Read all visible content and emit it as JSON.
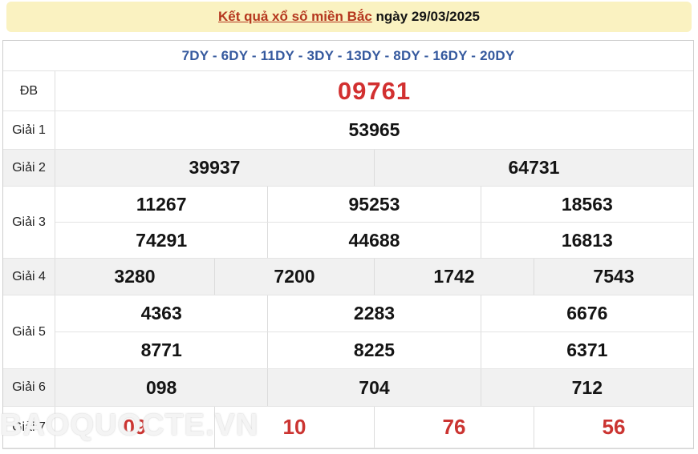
{
  "header": {
    "title_link": "Kết quả xổ số miền Bắc",
    "title_date": " ngày 29/03/2025"
  },
  "station_line": "7DY - 6DY - 11DY - 3DY - 13DY - 8DY - 16DY - 20DY",
  "results": {
    "rows": [
      {
        "label": "ĐB",
        "lines": [
          [
            "09761"
          ]
        ]
      },
      {
        "label": "Giải 1",
        "lines": [
          [
            "53965"
          ]
        ]
      },
      {
        "label": "Giải 2",
        "lines": [
          [
            "39937",
            "64731"
          ]
        ]
      },
      {
        "label": "Giải 3",
        "lines": [
          [
            "11267",
            "95253",
            "18563"
          ],
          [
            "74291",
            "44688",
            "16813"
          ]
        ]
      },
      {
        "label": "Giải 4",
        "lines": [
          [
            "3280",
            "7200",
            "1742",
            "7543"
          ]
        ]
      },
      {
        "label": "Giải 5",
        "lines": [
          [
            "4363",
            "2283",
            "6676"
          ],
          [
            "8771",
            "8225",
            "6371"
          ]
        ]
      },
      {
        "label": "Giải 6",
        "lines": [
          [
            "098",
            "704",
            "712"
          ]
        ]
      },
      {
        "label": "Giải 7",
        "lines": [
          [
            "09",
            "10",
            "76",
            "56"
          ]
        ]
      }
    ]
  },
  "watermark": "BAOQUOCTE.VN",
  "colors": {
    "band": "#FAF2C1",
    "titleRed": "#B5371E",
    "blue": "#35599E",
    "num": "#141414",
    "redSpecial": "#D23030",
    "red7": "#CB3431",
    "grayRow": "#F1F1F1"
  }
}
